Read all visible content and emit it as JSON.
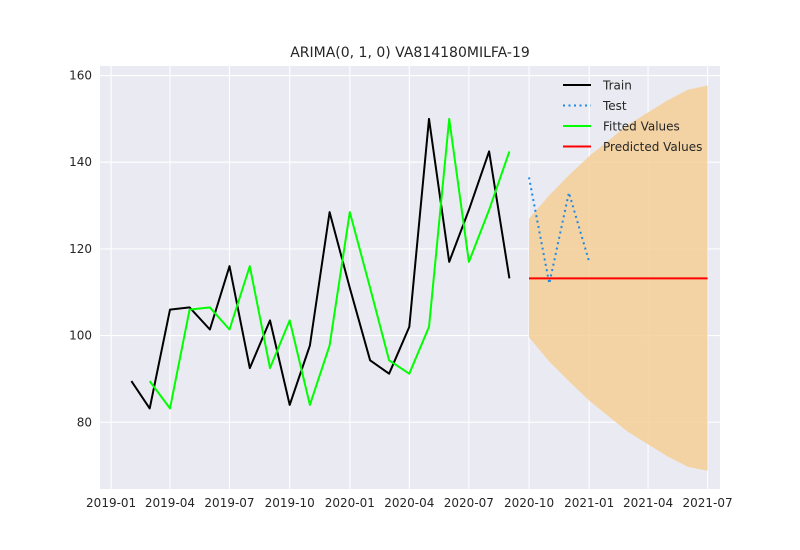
{
  "chart_data": {
    "type": "line",
    "title": "ARIMA(0, 1, 0) VA814180MILFA-19",
    "xlabel": "",
    "ylabel": "",
    "grid": true,
    "legend_position": "top-right",
    "x_range": [
      "2018-12-15",
      "2021-07-20"
    ],
    "y_range": [
      64.6,
      162.2
    ],
    "x_ticks": [
      "2019-01",
      "2019-04",
      "2019-07",
      "2019-10",
      "2020-01",
      "2020-04",
      "2020-07",
      "2020-10",
      "2021-01",
      "2021-04",
      "2021-07"
    ],
    "y_ticks": [
      80,
      100,
      120,
      140,
      160
    ],
    "series": [
      {
        "name": "Train",
        "color": "#000000",
        "style": "solid",
        "x": [
          "2019-02",
          "2019-03",
          "2019-04",
          "2019-05",
          "2019-06",
          "2019-07",
          "2019-08",
          "2019-09",
          "2019-10",
          "2019-11",
          "2019-12",
          "2020-01",
          "2020-02",
          "2020-03",
          "2020-04",
          "2020-05",
          "2020-06",
          "2020-07",
          "2020-08",
          "2020-09"
        ],
        "y": [
          89.5,
          83.2,
          106.0,
          106.5,
          101.4,
          116.0,
          92.5,
          103.5,
          84.0,
          97.7,
          128.5,
          111.0,
          94.3,
          91.2,
          102.0,
          150.0,
          117.0,
          129.0,
          142.5,
          113.2
        ]
      },
      {
        "name": "Test",
        "color": "#1e88e5",
        "style": "dotted",
        "x": [
          "2020-10",
          "2020-11",
          "2020-12",
          "2021-01"
        ],
        "y": [
          136.5,
          112.0,
          133.0,
          117.0
        ]
      },
      {
        "name": "Fitted Values",
        "color": "#00ff00",
        "style": "solid",
        "x": [
          "2019-03",
          "2019-04",
          "2019-05",
          "2019-06",
          "2019-07",
          "2019-08",
          "2019-09",
          "2019-10",
          "2019-11",
          "2019-12",
          "2020-01",
          "2020-02",
          "2020-03",
          "2020-04",
          "2020-05",
          "2020-06",
          "2020-07",
          "2020-08",
          "2020-09"
        ],
        "y": [
          89.5,
          83.2,
          106.0,
          106.5,
          101.4,
          116.0,
          92.5,
          103.5,
          84.0,
          97.7,
          128.5,
          111.0,
          94.3,
          91.2,
          102.0,
          150.0,
          117.0,
          129.0,
          142.5
        ]
      },
      {
        "name": "Predicted Values",
        "color": "#ff0000",
        "style": "solid",
        "x": [
          "2020-10",
          "2021-07"
        ],
        "y": [
          113.2,
          113.2
        ]
      }
    ],
    "confidence_band": {
      "color": "#f5cf95",
      "x": [
        "2020-10",
        "2020-11",
        "2020-12",
        "2021-01",
        "2021-02",
        "2021-03",
        "2021-04",
        "2021-05",
        "2021-06",
        "2021-07"
      ],
      "lower": [
        99.6,
        94.0,
        89.5,
        85.0,
        81.2,
        77.8,
        74.9,
        72.1,
        69.7,
        68.8
      ],
      "upper": [
        127.0,
        132.4,
        137.0,
        141.4,
        145.2,
        148.6,
        151.5,
        154.3,
        156.7,
        157.7
      ]
    }
  }
}
